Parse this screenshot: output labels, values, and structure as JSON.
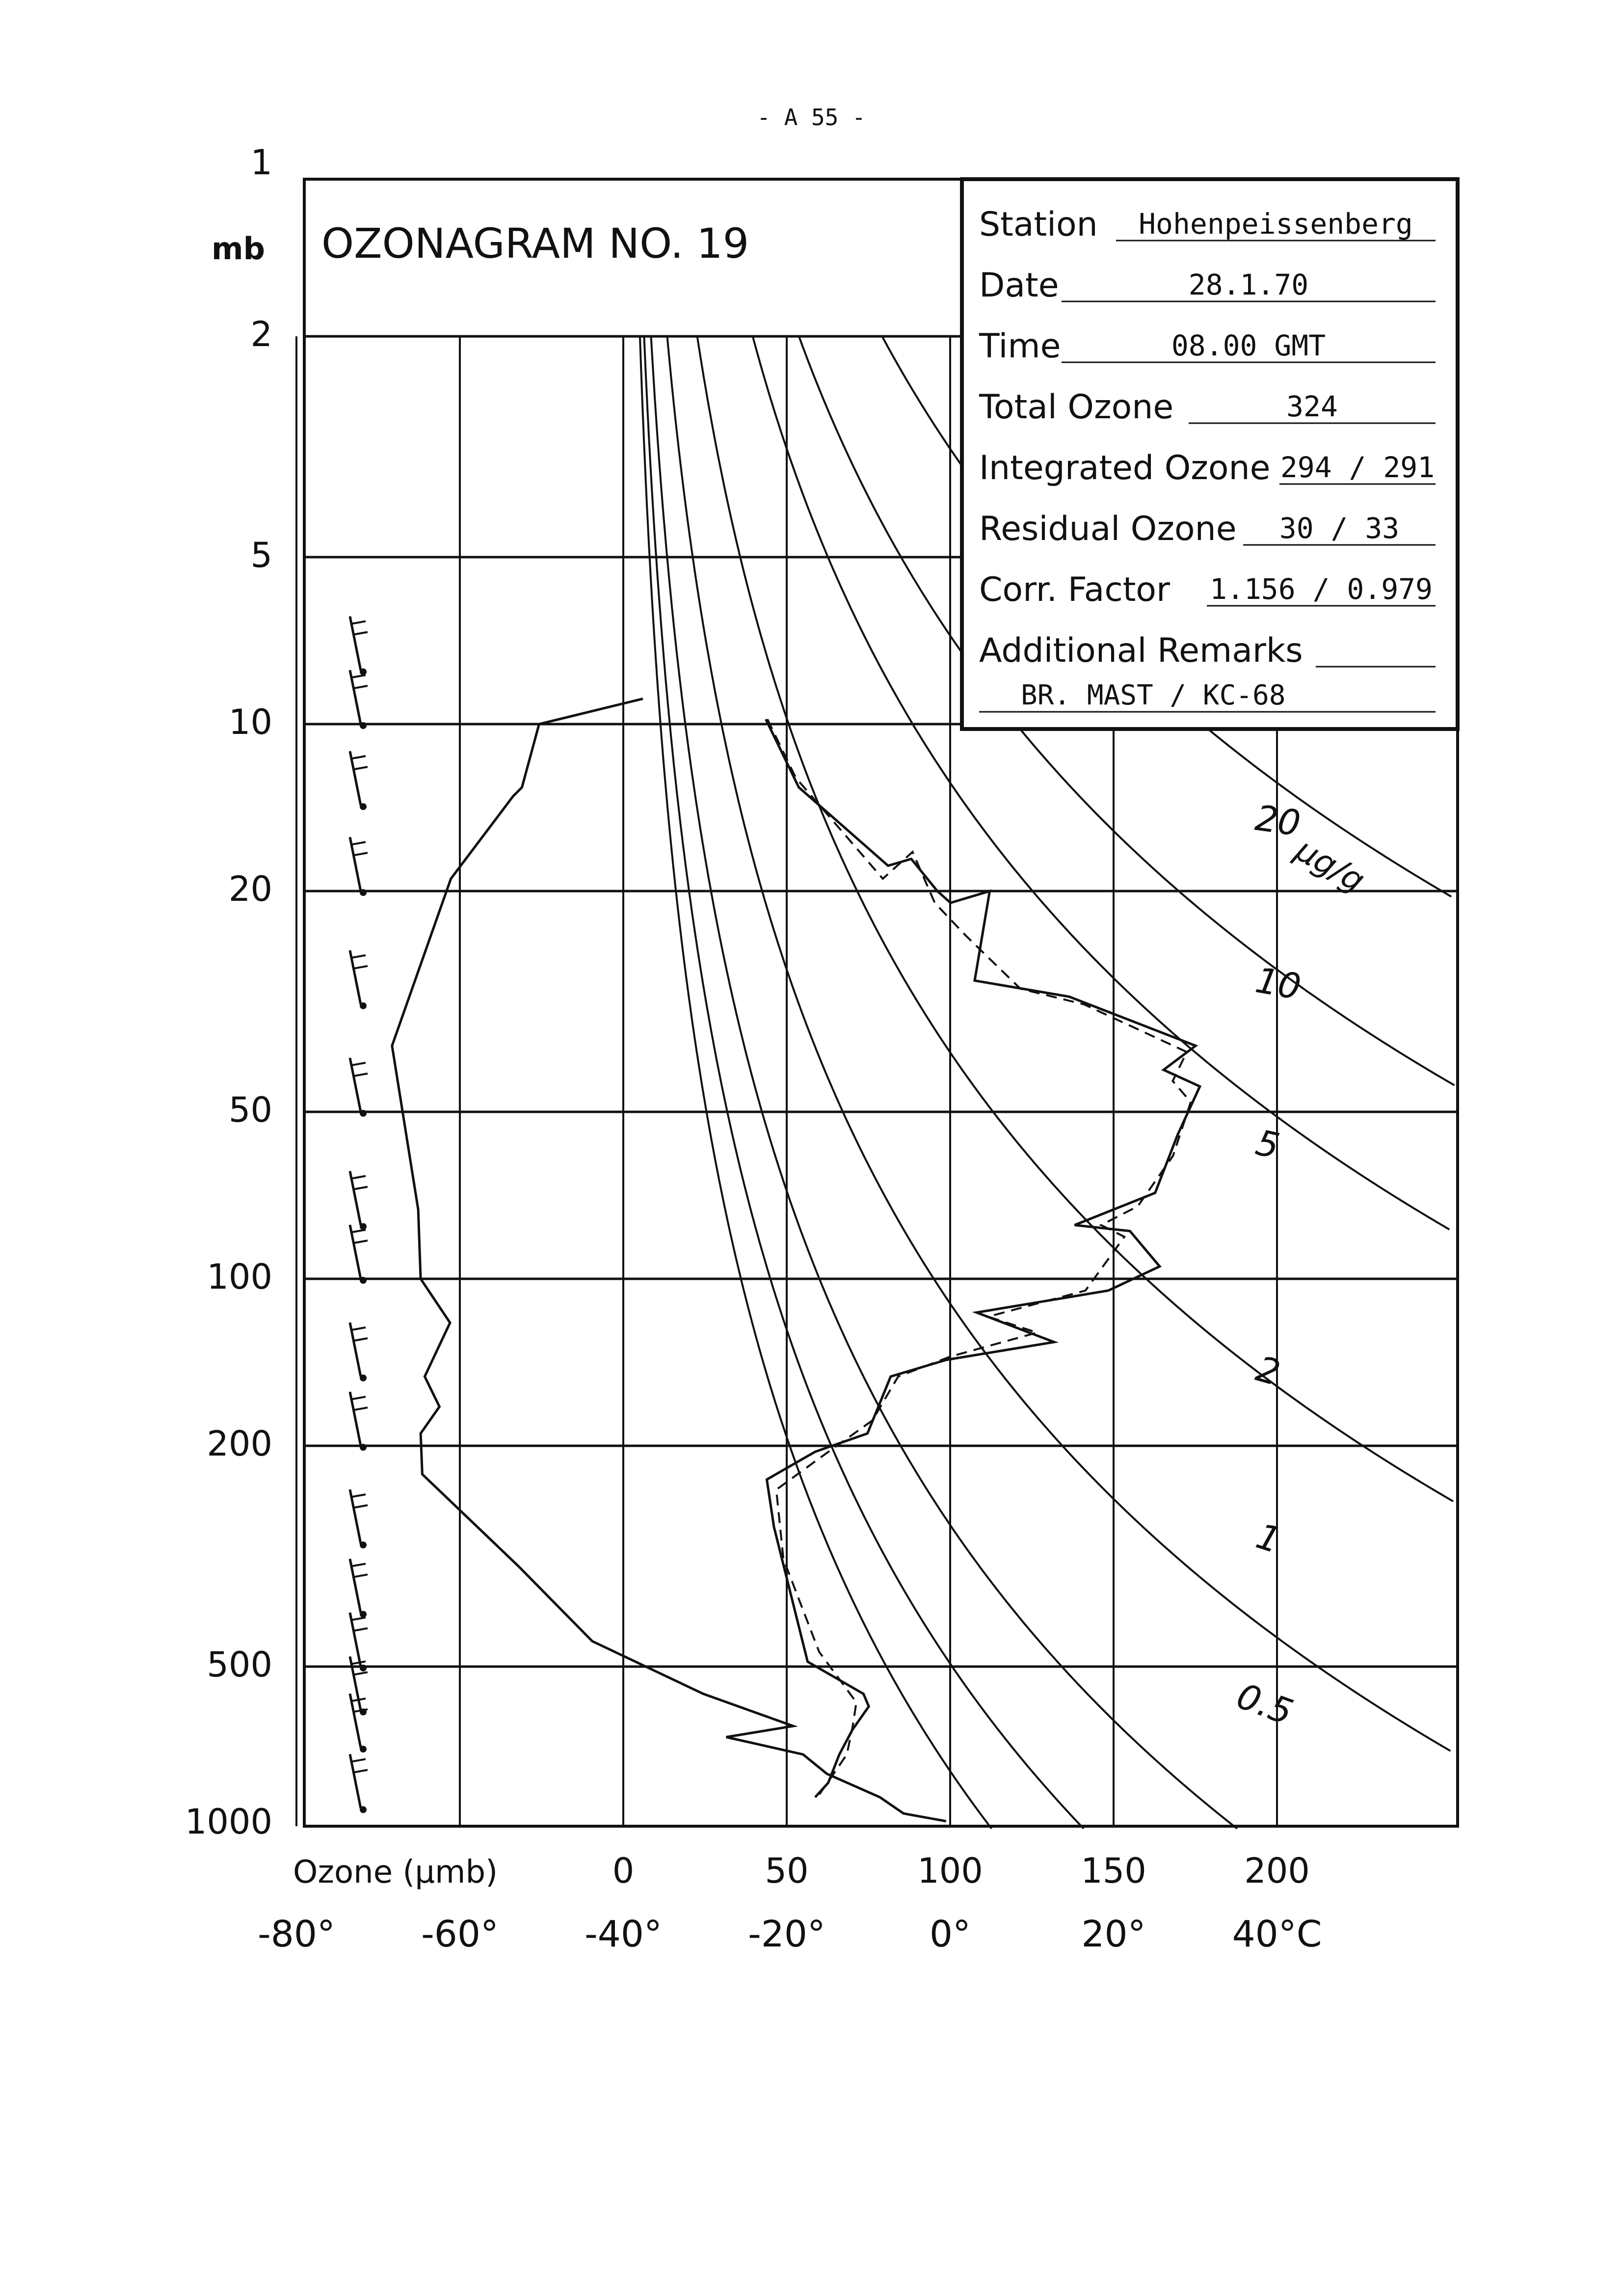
{
  "page_header": "- A 55 -",
  "chart_data": {
    "type": "line",
    "title": "OZONAGRAM NO. 19",
    "y_unit_label": "mb",
    "y_scale": "log",
    "y_reversed": true,
    "y_ticks": [
      1,
      2,
      5,
      10,
      20,
      50,
      100,
      200,
      500,
      1000
    ],
    "x_ozone_label": "Ozone (µmb)",
    "x_ozone_ticks": [
      0,
      50,
      100,
      150,
      200
    ],
    "x_ozone_range": [
      -100,
      250
    ],
    "x_temp_ticks": [
      "-80°",
      "-60°",
      "-40°",
      "-20°",
      "0°",
      "20°",
      "40°C"
    ],
    "x_temp_values": [
      -80,
      -60,
      -40,
      -20,
      0,
      20,
      40
    ],
    "grid": true,
    "mixing_ratio_unit": "µg/g",
    "mixing_ratio_labels": [
      "20",
      "10",
      "5",
      "2",
      "1",
      "0.5"
    ],
    "series": [
      {
        "name": "Temperature",
        "axis": "temperature",
        "points": [
          [
            -37.6,
            9
          ],
          [
            -50.3,
            10
          ],
          [
            -52.4,
            13
          ],
          [
            -53.5,
            13.5
          ],
          [
            -61.1,
            19
          ],
          [
            -68.3,
            38
          ],
          [
            -65.1,
            75
          ],
          [
            -64.8,
            100
          ],
          [
            -61.2,
            120
          ],
          [
            -64.3,
            150
          ],
          [
            -62.5,
            170
          ],
          [
            -64.8,
            190
          ],
          [
            -64.6,
            225
          ],
          [
            -52.8,
            330
          ],
          [
            -43.8,
            450
          ],
          [
            -30.2,
            560
          ],
          [
            -19.2,
            640
          ],
          [
            -27.4,
            670
          ],
          [
            -18.0,
            720
          ],
          [
            -15.1,
            780
          ],
          [
            -8.6,
            860
          ],
          [
            -5.7,
            920
          ],
          [
            -0.5,
            950
          ]
        ]
      },
      {
        "name": "Ozone",
        "axis": "ozone",
        "points": [
          [
            43.6,
            9.8
          ],
          [
            53.7,
            13
          ],
          [
            81.0,
            18
          ],
          [
            88.1,
            17.5
          ],
          [
            96.1,
            20
          ],
          [
            100.1,
            21
          ],
          [
            112.1,
            20
          ],
          [
            107.5,
            29
          ],
          [
            136.4,
            31
          ],
          [
            175.1,
            38
          ],
          [
            165.3,
            42
          ],
          [
            176.4,
            45
          ],
          [
            169.6,
            55
          ],
          [
            162.7,
            70
          ],
          [
            138.1,
            80
          ],
          [
            155.0,
            82
          ],
          [
            164.1,
            95
          ],
          [
            148.4,
            105
          ],
          [
            108.1,
            115
          ],
          [
            131.8,
            130
          ],
          [
            98.8,
            140
          ],
          [
            81.8,
            150
          ],
          [
            74.7,
            190
          ],
          [
            58.7,
            205
          ],
          [
            43.9,
            230
          ],
          [
            46.1,
            280
          ],
          [
            56.4,
            490
          ],
          [
            73.5,
            560
          ],
          [
            75.1,
            590
          ],
          [
            70.1,
            650
          ],
          [
            66.1,
            720
          ],
          [
            62.7,
            810
          ],
          [
            58.7,
            860
          ]
        ]
      },
      {
        "name": "Ozone (second trace)",
        "axis": "ozone",
        "points": [
          [
            44.1,
            9.8
          ],
          [
            52.8,
            12.5
          ],
          [
            79.4,
            19
          ],
          [
            88.5,
            17
          ],
          [
            95.3,
            21
          ],
          [
            104.6,
            24
          ],
          [
            121.5,
            30
          ],
          [
            140.9,
            32
          ],
          [
            172.4,
            39
          ],
          [
            168.1,
            44
          ],
          [
            173.6,
            48
          ],
          [
            168.2,
            60
          ],
          [
            157.4,
            74
          ],
          [
            146.2,
            80
          ],
          [
            153.3,
            84
          ],
          [
            141.4,
            105
          ],
          [
            111.6,
            117
          ],
          [
            126.6,
            125
          ],
          [
            100.2,
            138
          ],
          [
            84.1,
            150
          ],
          [
            76.2,
            180
          ],
          [
            60.3,
            210
          ],
          [
            46.8,
            240
          ],
          [
            49.0,
            320
          ],
          [
            59.9,
            470
          ],
          [
            71.3,
            580
          ],
          [
            70.2,
            640
          ],
          [
            68.4,
            720
          ],
          [
            63.1,
            800
          ],
          [
            60.0,
            850
          ]
        ]
      }
    ],
    "wind_levels_mb": [
      8,
      10,
      14,
      20,
      32,
      50,
      80,
      100,
      150,
      200,
      300,
      400,
      500,
      600,
      700,
      900
    ]
  },
  "info_box": {
    "rows": [
      {
        "label": "Station",
        "value": "Hohenpeissenberg"
      },
      {
        "label": "Date",
        "value": "28.1.70"
      },
      {
        "label": "Time",
        "value": "08.00  GMT"
      },
      {
        "label": "Total Ozone",
        "value": "324"
      },
      {
        "label": "Integrated Ozone",
        "value": "294 / 291"
      },
      {
        "label": "Residual Ozone",
        "value": "30 / 33"
      },
      {
        "label": "Corr. Factor",
        "value": "1.156 / 0.979"
      },
      {
        "label": "Additional Remarks",
        "value": ""
      }
    ],
    "remarks_line": "BR. MAST /  KC-68"
  }
}
